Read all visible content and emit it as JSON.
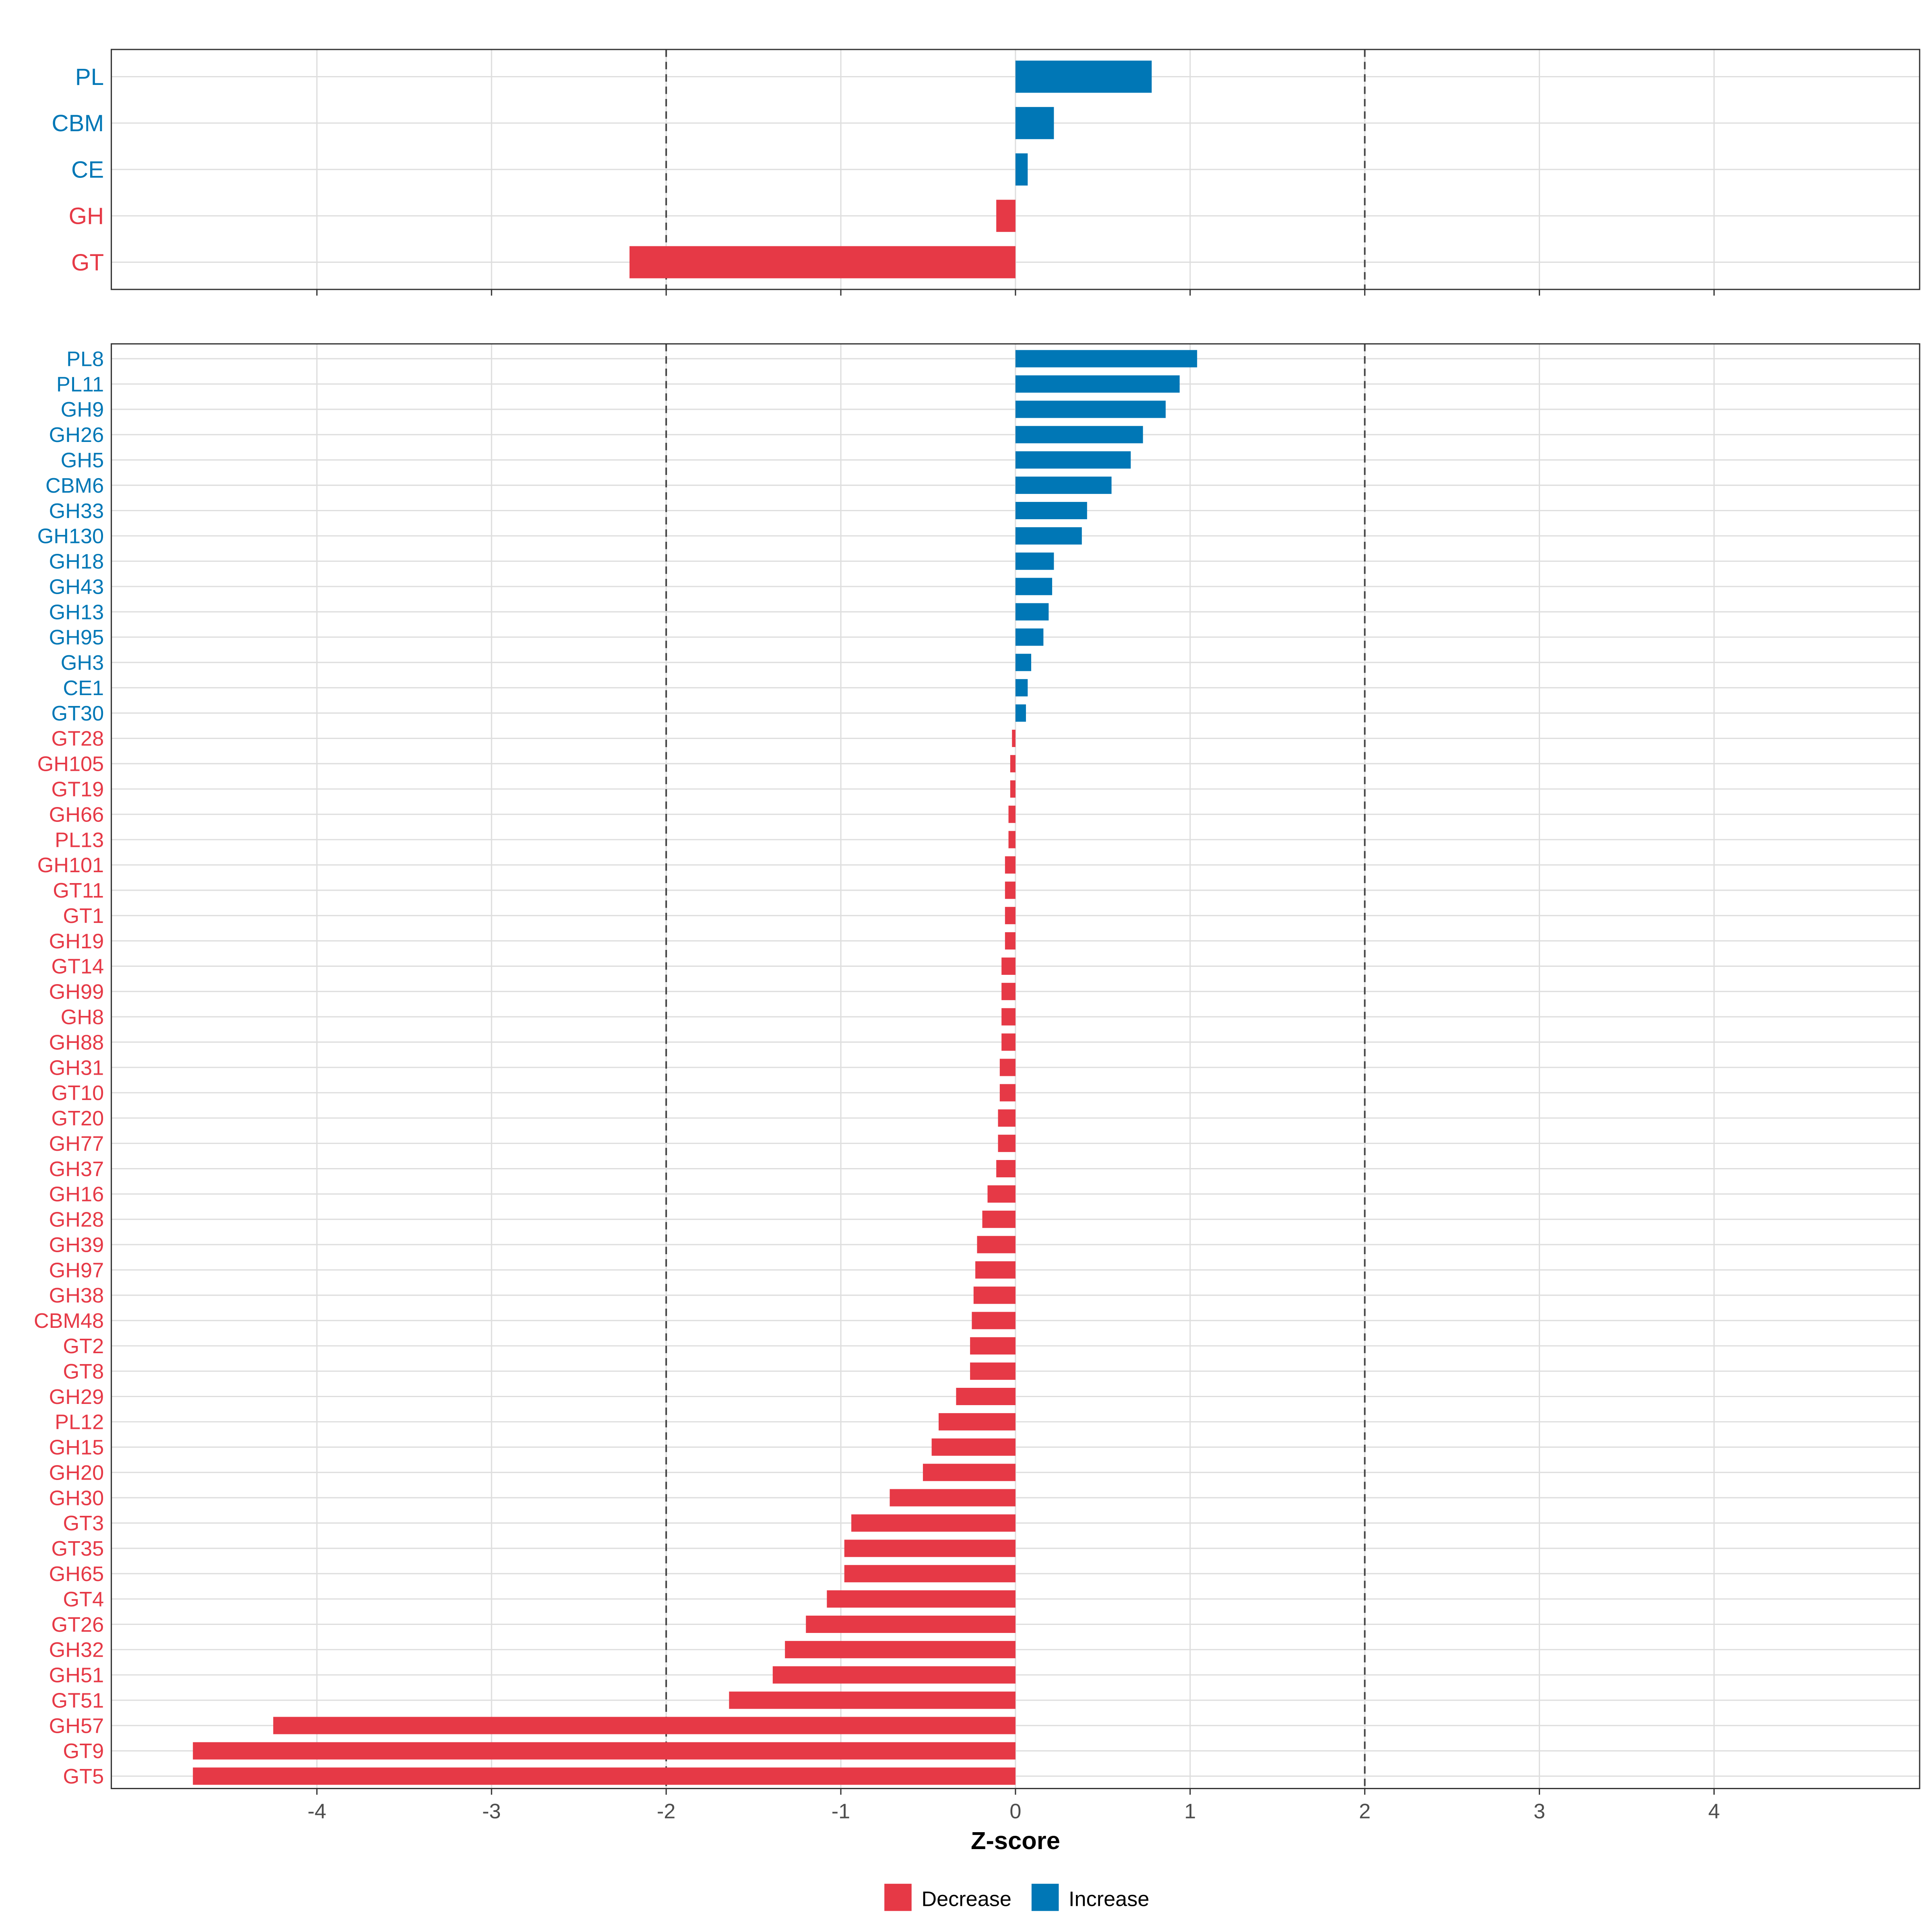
{
  "chart_data": [
    {
      "type": "bar",
      "orientation": "horizontal",
      "panel": "top",
      "categories": [
        "PL",
        "CBM",
        "CE",
        "GH",
        "GT"
      ],
      "values": [
        0.78,
        0.22,
        0.07,
        -0.11,
        -2.21
      ],
      "xlim": [
        -5.2,
        5.2
      ],
      "reference_lines": [
        -2,
        2
      ]
    },
    {
      "type": "bar",
      "orientation": "horizontal",
      "panel": "bottom",
      "categories": [
        "PL8",
        "PL11",
        "GH9",
        "GH26",
        "GH5",
        "CBM6",
        "GH33",
        "GH130",
        "GH18",
        "GH43",
        "GH13",
        "GH95",
        "GH3",
        "CE1",
        "GT30",
        "GT28",
        "GH105",
        "GT19",
        "GH66",
        "PL13",
        "GH101",
        "GT11",
        "GT1",
        "GH19",
        "GT14",
        "GH99",
        "GH8",
        "GH88",
        "GH31",
        "GT10",
        "GT20",
        "GH77",
        "GH37",
        "GH16",
        "GH28",
        "GH39",
        "GH97",
        "GH38",
        "CBM48",
        "GT2",
        "GT8",
        "GH29",
        "PL12",
        "GH15",
        "GH20",
        "GH30",
        "GT3",
        "GT35",
        "GH65",
        "GT4",
        "GT26",
        "GH32",
        "GH51",
        "GT51",
        "GH57",
        "GT9",
        "GT5"
      ],
      "values": [
        1.04,
        0.94,
        0.86,
        0.73,
        0.66,
        0.55,
        0.41,
        0.38,
        0.22,
        0.21,
        0.19,
        0.16,
        0.09,
        0.07,
        0.06,
        -0.02,
        -0.03,
        -0.03,
        -0.04,
        -0.04,
        -0.06,
        -0.06,
        -0.06,
        -0.06,
        -0.08,
        -0.08,
        -0.08,
        -0.08,
        -0.09,
        -0.09,
        -0.1,
        -0.1,
        -0.11,
        -0.16,
        -0.19,
        -0.22,
        -0.23,
        -0.24,
        -0.25,
        -0.26,
        -0.26,
        -0.34,
        -0.44,
        -0.48,
        -0.53,
        -0.72,
        -0.94,
        -0.98,
        -0.98,
        -1.08,
        -1.2,
        -1.32,
        -1.39,
        -1.64,
        -4.25,
        -4.71,
        -4.71
      ],
      "xlim": [
        -5.2,
        5.2
      ],
      "reference_lines": [
        -2,
        2
      ],
      "xlabel": "Z-score",
      "xticks": [
        -4,
        -3,
        -2,
        -1,
        0,
        1,
        2,
        3,
        4
      ],
      "xtick_labels": [
        "-4",
        "-3",
        "-2",
        "-1",
        "0",
        "1",
        "2",
        "3",
        "4"
      ]
    }
  ],
  "legend": {
    "placement": "bottom",
    "items": [
      {
        "label": "Decrease",
        "color": "#E63946"
      },
      {
        "label": "Increase",
        "color": "#0077B6"
      }
    ]
  },
  "colors": {
    "decrease": "#E63946",
    "increase": "#0077B6",
    "grid": "#DEDEDE",
    "border": "#333333"
  }
}
